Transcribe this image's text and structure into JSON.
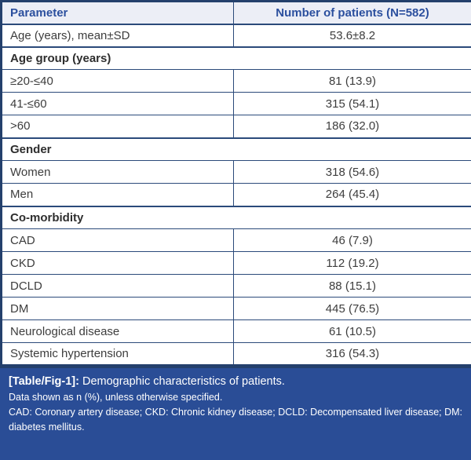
{
  "table": {
    "columns": [
      "Parameter",
      "Number of patients (N=582)"
    ],
    "rows": [
      {
        "type": "data",
        "label": "Age (years), mean±SD",
        "value": "53.6±8.2"
      },
      {
        "type": "section",
        "label": "Age group (years)"
      },
      {
        "type": "data",
        "label": "≥20-≤40",
        "value": "81 (13.9)"
      },
      {
        "type": "data",
        "label": "41-≤60",
        "value": "315 (54.1)"
      },
      {
        "type": "data",
        "label": ">60",
        "value": "186 (32.0)"
      },
      {
        "type": "section",
        "label": "Gender"
      },
      {
        "type": "data",
        "label": "Women",
        "value": "318 (54.6)"
      },
      {
        "type": "data",
        "label": "Men",
        "value": "264 (45.4)"
      },
      {
        "type": "section",
        "label": "Co-morbidity"
      },
      {
        "type": "data",
        "label": "CAD",
        "value": "46 (7.9)"
      },
      {
        "type": "data",
        "label": "CKD",
        "value": "112 (19.2)"
      },
      {
        "type": "data",
        "label": "DCLD",
        "value": "88 (15.1)"
      },
      {
        "type": "data",
        "label": "DM",
        "value": "445 (76.5)"
      },
      {
        "type": "data",
        "label": "Neurological disease",
        "value": "61 (10.5)"
      },
      {
        "type": "data",
        "label": "Systemic hypertension",
        "value": "316 (54.3)"
      }
    ]
  },
  "caption": {
    "tag": "[Table/Fig-1]:",
    "title": "Demographic characteristics of patients.",
    "note1": "Data shown as n (%), unless otherwise specified.",
    "note2": "CAD: Coronary artery disease; CKD: Chronic kidney disease; DCLD: Decompensated liver disease; DM: diabetes mellitus."
  },
  "colors": {
    "header_bg": "#eceef6",
    "header_text": "#2b4f9e",
    "grid_line": "#2b4a7a",
    "outer_border": "#24406c",
    "caption_bg": "#2a4d96",
    "caption_text": "#ffffff",
    "body_text": "#3d3d3d"
  }
}
